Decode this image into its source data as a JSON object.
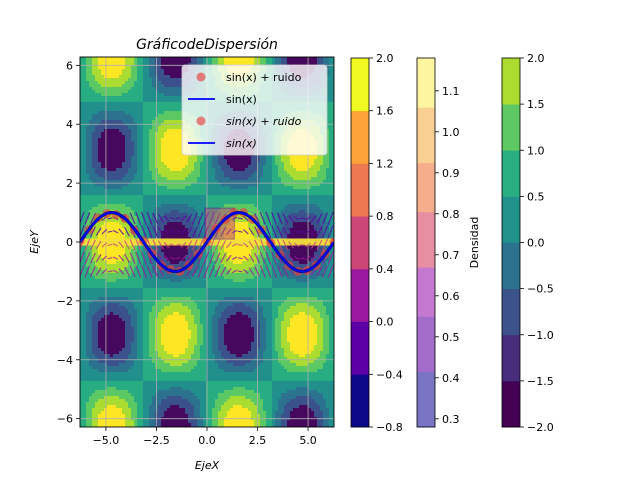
{
  "chart_data": {
    "type": "scatter",
    "title": "GráficodeDispersión",
    "xlabel": "EjeX",
    "ylabel": "EjeY",
    "xlim": [
      -6.283,
      6.283
    ],
    "ylim": [
      -6.283,
      6.283
    ],
    "grid": true,
    "xticks": [
      "−5.0",
      "−2.5",
      "0.0",
      "2.5",
      "5.0"
    ],
    "xtick_values": [
      -5,
      -2.5,
      0,
      2.5,
      5
    ],
    "yticks": [
      "−6",
      "−4",
      "−2",
      "0",
      "2",
      "4",
      "6"
    ],
    "ytick_values": [
      -6,
      -4,
      -2,
      0,
      2,
      4,
      6
    ],
    "background_contour": {
      "function": "sin(x)*cos(y)",
      "levels": [
        -1.0,
        -0.75,
        -0.5,
        -0.25,
        0.0,
        0.25,
        0.5,
        0.75,
        1.0
      ],
      "colors": [
        "#46085c",
        "#3b518b",
        "#2c718e",
        "#21908d",
        "#27ad81",
        "#5cc863",
        "#aadc32",
        "#fde725"
      ]
    },
    "series": [
      {
        "name": "sin(x) + ruido",
        "kind": "scatter",
        "color": "#e8413f",
        "x": [
          -6.28,
          -5.85,
          -5.4,
          -4.95,
          -4.5,
          -4.05,
          -3.6,
          -3.15,
          -2.7,
          -2.25,
          -1.8,
          -1.35,
          -0.9,
          -0.45,
          0.0,
          0.45,
          0.9,
          1.35,
          1.8,
          2.25,
          2.7,
          3.15,
          3.6,
          4.05,
          4.5,
          4.95,
          5.4,
          5.85,
          6.28
        ],
        "y": [
          0.05,
          0.42,
          0.82,
          0.97,
          0.93,
          0.8,
          0.39,
          0.04,
          -0.4,
          -0.8,
          -0.93,
          -1.0,
          -0.8,
          -0.41,
          0.02,
          0.46,
          0.76,
          1.0,
          1.0,
          0.77,
          0.41,
          -0.03,
          -0.43,
          -0.8,
          -1.0,
          -0.97,
          -0.79,
          -0.4,
          0.0
        ]
      },
      {
        "name": "sin(x)",
        "kind": "line",
        "color": "#0000ff",
        "function": "sin(x)"
      },
      {
        "name": "$sin(x) + ruido$",
        "kind": "scatter",
        "color": "#e8413f",
        "function": "sin(x)+noise"
      },
      {
        "name": "$sin(x)$",
        "kind": "line",
        "color": "#0000ff",
        "function": "sin(x)"
      }
    ],
    "legend": {
      "placement": "top-right",
      "entries": [
        {
          "label": "sin(x) + ruido",
          "marker": "circle",
          "color": "#e8413f",
          "italic": false
        },
        {
          "label": "sin(x)",
          "marker": "line",
          "color": "#0000ff",
          "italic": false
        },
        {
          "label": "sin(x) + ruido",
          "marker": "circle",
          "color": "#e8413f",
          "italic": true
        },
        {
          "label": "sin(x)",
          "marker": "line",
          "color": "#0000ff",
          "italic": true
        }
      ]
    },
    "colorbars": [
      {
        "label": "",
        "ticks": [
          "2.0",
          "1.6",
          "1.2",
          "0.8",
          "0.4",
          "0.0",
          "−0.4",
          "−0.8"
        ],
        "colors": [
          "#0d0887",
          "#5c01a6",
          "#9c179e",
          "#cc4778",
          "#ed7953",
          "#fba238",
          "#f0f921"
        ],
        "range": [
          -0.8,
          2.0
        ]
      },
      {
        "label": "Densidad",
        "ticks": [
          "1.1",
          "1.0",
          "0.9",
          "0.8",
          "0.7",
          "0.6",
          "0.5",
          "0.4",
          "0.3"
        ],
        "colors": [
          "#7a74c4",
          "#a36ccb",
          "#c478cf",
          "#e88ea2",
          "#f5ad8b",
          "#f9d092",
          "#fdf5a0"
        ],
        "range": [
          0.28,
          1.18
        ]
      },
      {
        "label": "",
        "ticks": [
          "2.0",
          "1.5",
          "1.0",
          "0.5",
          "0.0",
          "−0.5",
          "−1.0",
          "−1.5",
          "−2.0"
        ],
        "colors": [
          "#440154",
          "#472d7b",
          "#3b528b",
          "#2c728e",
          "#21918c",
          "#28ae80",
          "#5ec962",
          "#addc30"
        ],
        "range": [
          -2.0,
          2.0
        ]
      }
    ]
  }
}
